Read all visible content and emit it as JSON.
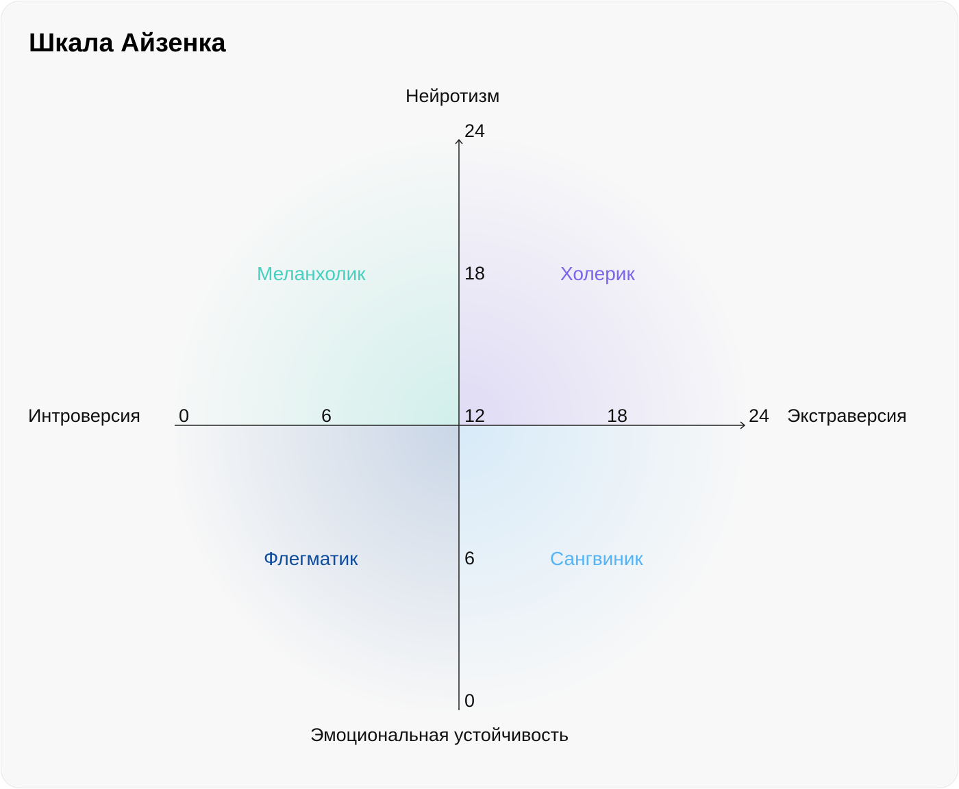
{
  "title": "Шкала Айзенка",
  "axes": {
    "top": "Нейротизм",
    "bottom": "Эмоциональная устойчивость",
    "left": "Интроверсия",
    "right": "Экстраверсия"
  },
  "x_ticks": [
    "0",
    "6",
    "12",
    "18",
    "24"
  ],
  "y_ticks": [
    "24",
    "18",
    "6",
    "0"
  ],
  "quadrants": {
    "melancholic": {
      "label": "Меланхолик",
      "color": "#47CFBF"
    },
    "choleric": {
      "label": "Холерик",
      "color": "#7A66E8"
    },
    "phlegmatic": {
      "label": "Флегматик",
      "color": "#0E4C9E"
    },
    "sanguine": {
      "label": "Сангвиник",
      "color": "#55B4F8"
    }
  },
  "axis_color": "#222222"
}
